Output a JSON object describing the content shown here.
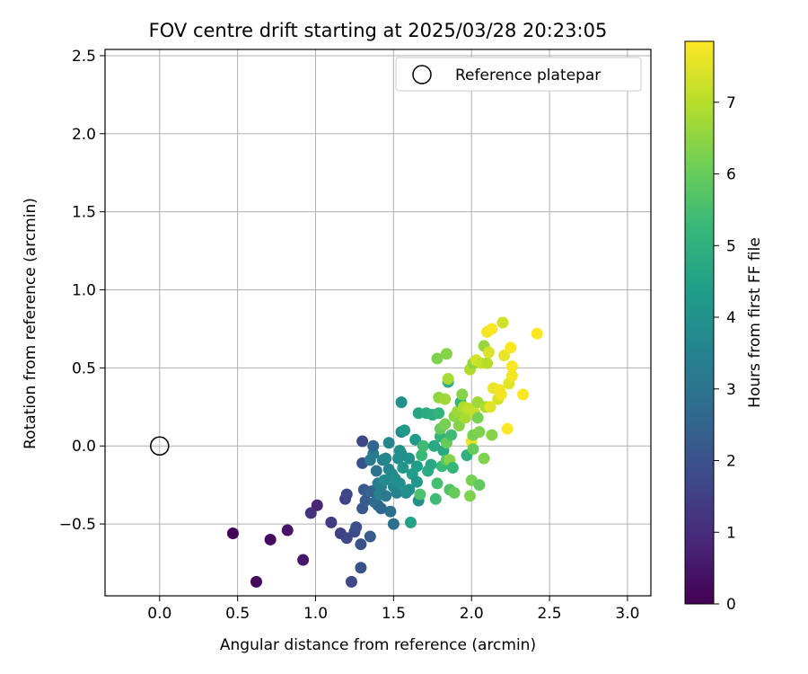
{
  "chart_data": {
    "type": "scatter",
    "title": "FOV centre drift starting at 2025/03/28 20:23:05",
    "xlabel": "Angular distance from reference (arcmin)",
    "ylabel": "Rotation from reference (arcmin)",
    "xlim": [
      -0.35,
      3.15
    ],
    "ylim": [
      -0.96,
      2.54
    ],
    "xticks": [
      0.0,
      0.5,
      1.0,
      1.5,
      2.0,
      2.5,
      3.0
    ],
    "xtick_labels": [
      "0.0",
      "0.5",
      "1.0",
      "1.5",
      "2.0",
      "2.5",
      "3.0"
    ],
    "yticks": [
      -0.5,
      0.0,
      0.5,
      1.0,
      1.5,
      2.0,
      2.5
    ],
    "ytick_labels": [
      "−0.5",
      "0.0",
      "0.5",
      "1.0",
      "1.5",
      "2.0",
      "2.5"
    ],
    "grid": true,
    "legend": {
      "position": "top-right",
      "label": "Reference platepar"
    },
    "reference_point": {
      "x": 0.0,
      "y": 0.0,
      "marker": "open-circle"
    },
    "colorbar": {
      "label": "Hours from first FF file",
      "colormap": "viridis",
      "range": [
        0,
        7.85
      ],
      "ticks": [
        0,
        1,
        2,
        3,
        4,
        5,
        6,
        7
      ],
      "tick_labels": [
        "0",
        "1",
        "2",
        "3",
        "4",
        "5",
        "6",
        "7"
      ]
    },
    "colormap_stops": [
      "#440154",
      "#482878",
      "#3e4989",
      "#31688e",
      "#26828e",
      "#1f9e89",
      "#35b779",
      "#6ece58",
      "#b5de2b",
      "#fde725"
    ],
    "points": [
      {
        "x": 0.47,
        "y": -0.56,
        "h": 0.1
      },
      {
        "x": 0.62,
        "y": -0.87,
        "h": 0.15
      },
      {
        "x": 0.71,
        "y": -0.6,
        "h": 0.2
      },
      {
        "x": 0.82,
        "y": -0.54,
        "h": 0.4
      },
      {
        "x": 0.92,
        "y": -0.73,
        "h": 0.5
      },
      {
        "x": 1.01,
        "y": -0.38,
        "h": 0.8
      },
      {
        "x": 0.97,
        "y": -0.43,
        "h": 1.1
      },
      {
        "x": 1.1,
        "y": -0.49,
        "h": 1.4
      },
      {
        "x": 1.16,
        "y": -0.56,
        "h": 1.5
      },
      {
        "x": 1.19,
        "y": -0.34,
        "h": 1.6
      },
      {
        "x": 1.2,
        "y": -0.59,
        "h": 1.7
      },
      {
        "x": 1.2,
        "y": -0.31,
        "h": 1.7
      },
      {
        "x": 1.23,
        "y": -0.87,
        "h": 1.7
      },
      {
        "x": 1.25,
        "y": -0.55,
        "h": 1.8
      },
      {
        "x": 1.26,
        "y": -0.52,
        "h": 1.9
      },
      {
        "x": 1.29,
        "y": -0.63,
        "h": 2.0
      },
      {
        "x": 1.29,
        "y": -0.78,
        "h": 2.0
      },
      {
        "x": 1.3,
        "y": 0.03,
        "h": 1.7
      },
      {
        "x": 1.3,
        "y": -0.11,
        "h": 2.0
      },
      {
        "x": 1.3,
        "y": -0.4,
        "h": 2.2
      },
      {
        "x": 1.31,
        "y": -0.28,
        "h": 2.2
      },
      {
        "x": 1.32,
        "y": -0.35,
        "h": 2.3
      },
      {
        "x": 1.35,
        "y": -0.58,
        "h": 2.3
      },
      {
        "x": 1.35,
        "y": -0.09,
        "h": 3.2
      },
      {
        "x": 1.37,
        "y": -0.05,
        "h": 3.3
      },
      {
        "x": 1.36,
        "y": -0.29,
        "h": 2.5
      },
      {
        "x": 1.37,
        "y": 0.0,
        "h": 2.6
      },
      {
        "x": 1.38,
        "y": -0.36,
        "h": 2.7
      },
      {
        "x": 1.39,
        "y": -0.16,
        "h": 3.0
      },
      {
        "x": 1.4,
        "y": -0.38,
        "h": 2.8
      },
      {
        "x": 1.4,
        "y": -0.24,
        "h": 3.3
      },
      {
        "x": 1.41,
        "y": -0.31,
        "h": 3.5
      },
      {
        "x": 1.42,
        "y": -0.4,
        "h": 2.6
      },
      {
        "x": 1.42,
        "y": -0.26,
        "h": 3.4
      },
      {
        "x": 1.43,
        "y": -0.09,
        "h": 3.5
      },
      {
        "x": 1.44,
        "y": -0.22,
        "h": 3.7
      },
      {
        "x": 1.45,
        "y": -0.08,
        "h": 3.6
      },
      {
        "x": 1.45,
        "y": -0.32,
        "h": 3.2
      },
      {
        "x": 1.47,
        "y": 0.02,
        "h": 3.6
      },
      {
        "x": 1.47,
        "y": -0.15,
        "h": 3.6
      },
      {
        "x": 1.48,
        "y": -0.42,
        "h": 2.9
      },
      {
        "x": 1.49,
        "y": -0.18,
        "h": 3.7
      },
      {
        "x": 1.5,
        "y": -0.5,
        "h": 2.9
      },
      {
        "x": 1.5,
        "y": -0.26,
        "h": 3.7
      },
      {
        "x": 1.51,
        "y": -0.21,
        "h": 3.9
      },
      {
        "x": 1.52,
        "y": -0.3,
        "h": 3.5
      },
      {
        "x": 1.53,
        "y": -0.08,
        "h": 3.8
      },
      {
        "x": 1.54,
        "y": -0.03,
        "h": 3.9
      },
      {
        "x": 1.54,
        "y": -0.24,
        "h": 3.9
      },
      {
        "x": 1.55,
        "y": -0.05,
        "h": 3.9
      },
      {
        "x": 1.55,
        "y": 0.09,
        "h": 3.7
      },
      {
        "x": 1.55,
        "y": 0.28,
        "h": 3.9
      },
      {
        "x": 1.56,
        "y": -0.14,
        "h": 4.1
      },
      {
        "x": 1.57,
        "y": 0.1,
        "h": 4.3
      },
      {
        "x": 1.58,
        "y": -0.3,
        "h": 3.8
      },
      {
        "x": 1.6,
        "y": -0.28,
        "h": 3.9
      },
      {
        "x": 1.6,
        "y": -0.08,
        "h": 4.0
      },
      {
        "x": 1.61,
        "y": -0.49,
        "h": 4.5
      },
      {
        "x": 1.62,
        "y": -0.18,
        "h": 4.4
      },
      {
        "x": 1.64,
        "y": 0.04,
        "h": 4.3
      },
      {
        "x": 1.65,
        "y": -0.23,
        "h": 4.1
      },
      {
        "x": 1.65,
        "y": -0.13,
        "h": 4.4
      },
      {
        "x": 1.66,
        "y": -0.35,
        "h": 3.9
      },
      {
        "x": 1.66,
        "y": 0.21,
        "h": 4.6
      },
      {
        "x": 1.67,
        "y": -0.31,
        "h": 5.6
      },
      {
        "x": 1.68,
        "y": -0.06,
        "h": 5.3
      },
      {
        "x": 1.69,
        "y": 0.0,
        "h": 5.4
      },
      {
        "x": 1.71,
        "y": 0.21,
        "h": 4.8
      },
      {
        "x": 1.72,
        "y": -0.16,
        "h": 4.8
      },
      {
        "x": 1.74,
        "y": -0.12,
        "h": 4.7
      },
      {
        "x": 1.75,
        "y": 0.2,
        "h": 4.9
      },
      {
        "x": 1.76,
        "y": 0.0,
        "h": 4.7
      },
      {
        "x": 1.77,
        "y": -0.34,
        "h": 5.4
      },
      {
        "x": 1.78,
        "y": -0.24,
        "h": 5.5
      },
      {
        "x": 1.78,
        "y": 0.56,
        "h": 6.3
      },
      {
        "x": 1.79,
        "y": 0.21,
        "h": 5.1
      },
      {
        "x": 1.79,
        "y": 0.31,
        "h": 6.5
      },
      {
        "x": 1.8,
        "y": 0.06,
        "h": 5.1
      },
      {
        "x": 1.8,
        "y": 0.11,
        "h": 6.0
      },
      {
        "x": 1.81,
        "y": -0.13,
        "h": 5.3
      },
      {
        "x": 1.82,
        "y": -0.03,
        "h": 4.7
      },
      {
        "x": 1.83,
        "y": 0.14,
        "h": 6.2
      },
      {
        "x": 1.83,
        "y": 0.3,
        "h": 6.7
      },
      {
        "x": 1.84,
        "y": -0.09,
        "h": 5.8
      },
      {
        "x": 1.84,
        "y": 0.02,
        "h": 6.0
      },
      {
        "x": 1.84,
        "y": 0.59,
        "h": 6.4
      },
      {
        "x": 1.85,
        "y": 0.41,
        "h": 4.8
      },
      {
        "x": 1.85,
        "y": 0.43,
        "h": 6.8
      },
      {
        "x": 1.86,
        "y": -0.09,
        "h": 6.4
      },
      {
        "x": 1.86,
        "y": -0.28,
        "h": 5.7
      },
      {
        "x": 1.87,
        "y": 0.07,
        "h": 5.4
      },
      {
        "x": 1.88,
        "y": -0.14,
        "h": 5.2
      },
      {
        "x": 1.89,
        "y": -0.3,
        "h": 6.0
      },
      {
        "x": 1.89,
        "y": 0.19,
        "h": 6.5
      },
      {
        "x": 1.91,
        "y": 0.22,
        "h": 6.7
      },
      {
        "x": 1.92,
        "y": 0.13,
        "h": 6.4
      },
      {
        "x": 1.93,
        "y": 0.28,
        "h": 5.1
      },
      {
        "x": 1.94,
        "y": 0.33,
        "h": 6.4
      },
      {
        "x": 1.95,
        "y": 0.25,
        "h": 6.9
      },
      {
        "x": 1.96,
        "y": 0.18,
        "h": 6.8
      },
      {
        "x": 1.97,
        "y": -0.06,
        "h": 5.0
      },
      {
        "x": 1.98,
        "y": 0.24,
        "h": 7.1
      },
      {
        "x": 1.99,
        "y": 0.49,
        "h": 6.9
      },
      {
        "x": 1.99,
        "y": -0.32,
        "h": 6.3
      },
      {
        "x": 2.0,
        "y": 0.03,
        "h": 7.6
      },
      {
        "x": 2.0,
        "y": -0.22,
        "h": 6.2
      },
      {
        "x": 2.01,
        "y": 0.07,
        "h": 6.2
      },
      {
        "x": 2.01,
        "y": -0.02,
        "h": 6.0
      },
      {
        "x": 2.01,
        "y": 0.53,
        "h": 6.5
      },
      {
        "x": 2.02,
        "y": 0.21,
        "h": 7.2
      },
      {
        "x": 2.03,
        "y": 0.55,
        "h": 7.4
      },
      {
        "x": 2.04,
        "y": 0.28,
        "h": 6.7
      },
      {
        "x": 2.04,
        "y": 0.18,
        "h": 6.2
      },
      {
        "x": 2.05,
        "y": -0.25,
        "h": 5.9
      },
      {
        "x": 2.05,
        "y": 0.09,
        "h": 6.3
      },
      {
        "x": 2.06,
        "y": 0.53,
        "h": 7.2
      },
      {
        "x": 2.08,
        "y": 0.64,
        "h": 6.6
      },
      {
        "x": 2.08,
        "y": -0.08,
        "h": 6.3
      },
      {
        "x": 2.09,
        "y": 0.25,
        "h": 6.9
      },
      {
        "x": 2.1,
        "y": 0.53,
        "h": 7.0
      },
      {
        "x": 2.1,
        "y": 0.73,
        "h": 7.7
      },
      {
        "x": 2.11,
        "y": 0.6,
        "h": 7.4
      },
      {
        "x": 2.12,
        "y": 0.25,
        "h": 7.5
      },
      {
        "x": 2.13,
        "y": 0.75,
        "h": 7.8
      },
      {
        "x": 2.13,
        "y": 0.07,
        "h": 6.4
      },
      {
        "x": 2.14,
        "y": 0.37,
        "h": 7.6
      },
      {
        "x": 2.17,
        "y": 0.3,
        "h": 7.4
      },
      {
        "x": 2.18,
        "y": 0.36,
        "h": 7.7
      },
      {
        "x": 2.19,
        "y": 0.33,
        "h": 7.7
      },
      {
        "x": 2.2,
        "y": 0.79,
        "h": 7.3
      },
      {
        "x": 2.21,
        "y": 0.58,
        "h": 7.6
      },
      {
        "x": 2.23,
        "y": 0.11,
        "h": 7.8
      },
      {
        "x": 2.24,
        "y": 0.4,
        "h": 7.5
      },
      {
        "x": 2.25,
        "y": 0.63,
        "h": 7.8
      },
      {
        "x": 2.26,
        "y": 0.45,
        "h": 7.7
      },
      {
        "x": 2.26,
        "y": 0.51,
        "h": 7.8
      },
      {
        "x": 2.33,
        "y": 0.33,
        "h": 7.8
      },
      {
        "x": 2.42,
        "y": 0.72,
        "h": 7.8
      }
    ]
  }
}
